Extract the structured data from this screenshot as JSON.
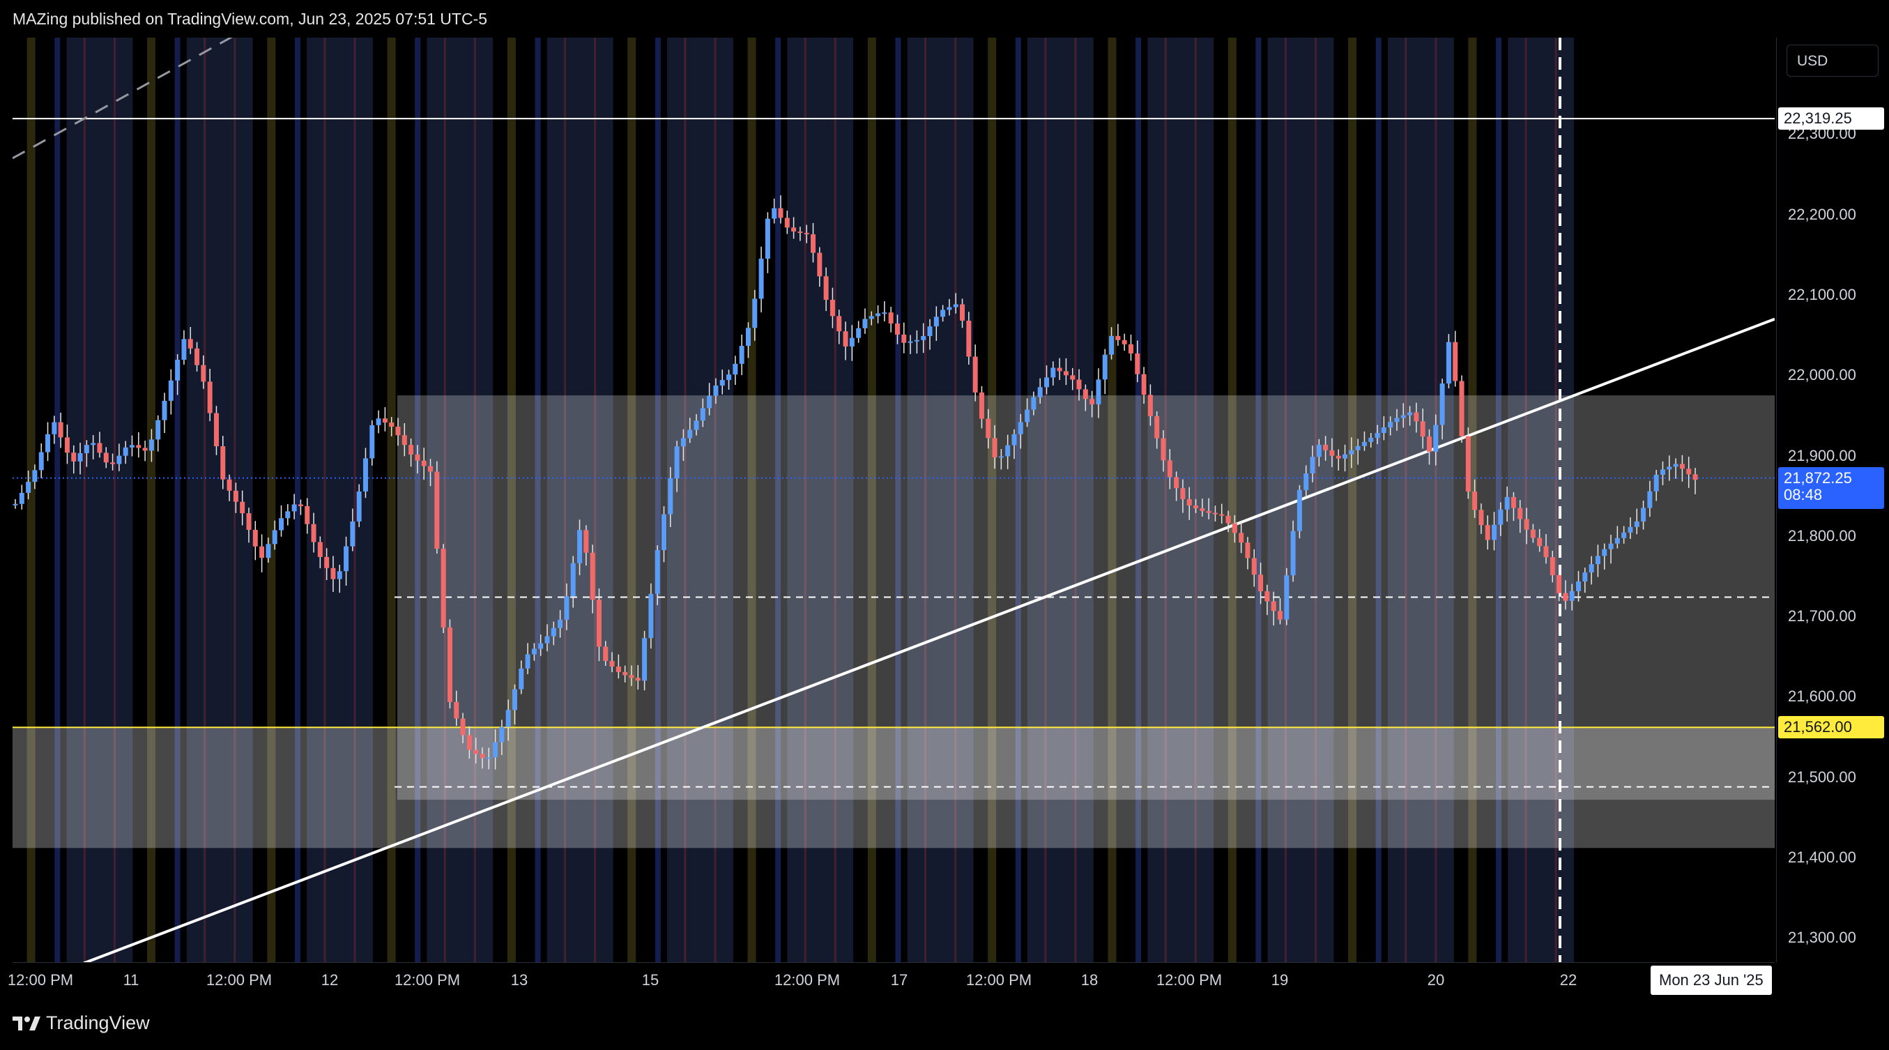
{
  "header": {
    "published": "MAZing published on TradingView.com, Jun 23, 2025 07:51 UTC-5"
  },
  "footer": {
    "brand": "TradingView",
    "logo_icon": "tradingview-logo-icon"
  },
  "axis": {
    "currency": "USD",
    "price_ticks": [
      "22,300.00",
      "22,200.00",
      "22,100.00",
      "22,000.00",
      "21,900.00",
      "21,800.00",
      "21,700.00",
      "21,600.00",
      "21,500.00",
      "21,400.00",
      "21,300.00"
    ],
    "time_ticks": [
      "12:00 PM",
      "11",
      "12:00 PM",
      "12",
      "12:00 PM",
      "13",
      "15",
      "12:00 PM",
      "17",
      "12:00 PM",
      "18",
      "12:00 PM",
      "19",
      "20",
      "22"
    ],
    "crosshair_date": "Mon 23 Jun '25"
  },
  "price_labels": {
    "top_line": "22,319.25",
    "last_price": "21,872.25",
    "countdown": "08:48",
    "support_line": "21,562.00"
  },
  "colors": {
    "background": "#000000",
    "session_band": "#131a2e",
    "up_candle": "#5b9cf6",
    "down_candle": "#f26b6b",
    "yellow_line": "#ffeb3b",
    "last_price_label": "#2962ff",
    "zone": "#ffffff"
  },
  "chart_data": {
    "type": "candlestick",
    "title": "",
    "y_unit": "USD",
    "ylim": [
      21270,
      22420
    ],
    "x_labels": [
      "12:00 PM",
      "11",
      "12:00 PM",
      "12",
      "12:00 PM",
      "13",
      "15",
      "12:00 PM",
      "17",
      "12:00 PM",
      "18",
      "12:00 PM",
      "19",
      "20",
      "22"
    ],
    "close_path": [
      [
        21840,
        21880,
        21945,
        21890,
        21920,
        21885,
        21915,
        21905,
        21975,
        22050,
        21990,
        21870,
        21830,
        21770,
        21820,
        21845,
        21780,
        21740,
        21830,
        21950,
        21935,
        21900,
        21880,
        21595,
        21535,
        21520,
        21575,
        21650,
        21670,
        21700,
        21820,
        21650,
        21630,
        21620,
        21780,
        21910,
        21940,
        21985,
        22005,
        22070,
        22215,
        22180,
        22175,
        22090,
        22035,
        22070,
        22080,
        22040,
        22045,
        22080,
        22090,
        21960,
        21890,
        21930,
        21975,
        22010,
        21995,
        21960,
        22050,
        22035,
        21960,
        21880,
        21840,
        21830,
        21825,
        21790,
        21730,
        21695,
        21855,
        21915,
        21895,
        21910,
        21925,
        21945,
        21955,
        21900,
        22050,
        21850,
        21795,
        21850,
        21810,
        21780,
        21715,
        21750,
        21780,
        21800,
        21820,
        21880,
        21890,
        21870
      ]
    ],
    "horizontal_levels": [
      {
        "price": 22319.25,
        "style": "solid-white"
      },
      {
        "price": 21562.0,
        "style": "solid-yellow"
      },
      {
        "price": 21724,
        "style": "dashed-white"
      },
      {
        "price": 21488,
        "style": "dashed-white"
      },
      {
        "price": 21872.25,
        "style": "dotted-blue"
      }
    ],
    "zones": [
      {
        "from": 21472,
        "to": 21975,
        "start": "Jun 12 12:00 PM",
        "end": "Jun 23"
      },
      {
        "from": 21412,
        "to": 21562,
        "start": "Jun 10",
        "end": "Jun 23"
      }
    ],
    "trendlines": [
      {
        "style": "solid-white",
        "from": [
          0.03,
          21260
        ],
        "to": [
          1.0,
          22070
        ]
      },
      {
        "style": "dashed-gray",
        "from": [
          0.0,
          22270
        ],
        "to": [
          0.33,
          22670
        ]
      }
    ],
    "grid": false
  }
}
